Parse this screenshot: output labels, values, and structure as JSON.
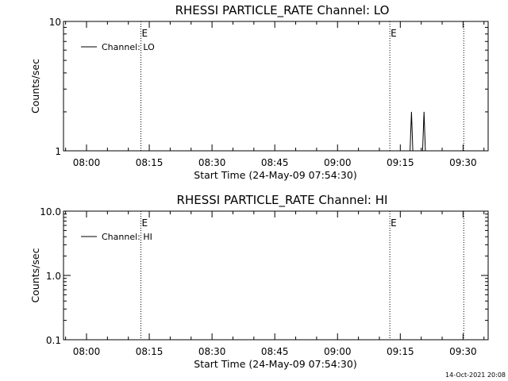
{
  "chart_data": [
    {
      "type": "line",
      "title": "RHESSI PARTICLE_RATE Channel: LO",
      "xlabel": "Start Time (24-May-09 07:54:30)",
      "ylabel": "Counts/sec",
      "x_unit": "time of day (24-May-09)",
      "xlim": [
        "07:54:30",
        "09:36:00"
      ],
      "ylim": [
        1,
        10
      ],
      "y_scale": "log",
      "grid": false,
      "legend_position": "top-left",
      "x_ticks": [
        "08:00",
        "08:15",
        "08:30",
        "08:45",
        "09:00",
        "09:15",
        "09:30"
      ],
      "y_ticks": [
        {
          "value": 1,
          "label": "1"
        },
        {
          "value": 10,
          "label": "10"
        }
      ],
      "markers": [
        {
          "time": "08:13:00",
          "label": "E",
          "style": "dotted"
        },
        {
          "time": "09:12:30",
          "label": "E",
          "style": "dotted"
        },
        {
          "time": "09:30:10",
          "label": "",
          "style": "dotted"
        }
      ],
      "series": [
        {
          "name": "Channel: LO",
          "color": "#000000",
          "points": [
            {
              "x": "09:17:20",
              "y": 1
            },
            {
              "x": "09:17:40",
              "y": 2
            },
            {
              "x": "09:18:00",
              "y": 1
            },
            {
              "x": "09:20:20",
              "y": 1
            },
            {
              "x": "09:20:40",
              "y": 2
            },
            {
              "x": "09:21:00",
              "y": 1
            }
          ]
        }
      ]
    },
    {
      "type": "line",
      "title": "RHESSI PARTICLE_RATE Channel: HI",
      "xlabel": "Start Time (24-May-09 07:54:30)",
      "ylabel": "Counts/sec",
      "x_unit": "time of day (24-May-09)",
      "xlim": [
        "07:54:30",
        "09:36:00"
      ],
      "ylim": [
        0.1,
        10
      ],
      "y_scale": "log",
      "grid": false,
      "legend_position": "top-left",
      "x_ticks": [
        "08:00",
        "08:15",
        "08:30",
        "08:45",
        "09:00",
        "09:15",
        "09:30"
      ],
      "y_ticks": [
        {
          "value": 0.1,
          "label": "0.1"
        },
        {
          "value": 1,
          "label": "1.0"
        },
        {
          "value": 10,
          "label": "10.0"
        }
      ],
      "markers": [
        {
          "time": "08:13:00",
          "label": "E",
          "style": "dotted"
        },
        {
          "time": "09:12:30",
          "label": "E",
          "style": "dotted"
        },
        {
          "time": "09:30:10",
          "label": "",
          "style": "dotted"
        }
      ],
      "series": [
        {
          "name": "Channel: HI",
          "color": "#000000",
          "points": []
        }
      ]
    }
  ],
  "footer": {
    "timestamp": "14-Oct-2021 20:08"
  }
}
